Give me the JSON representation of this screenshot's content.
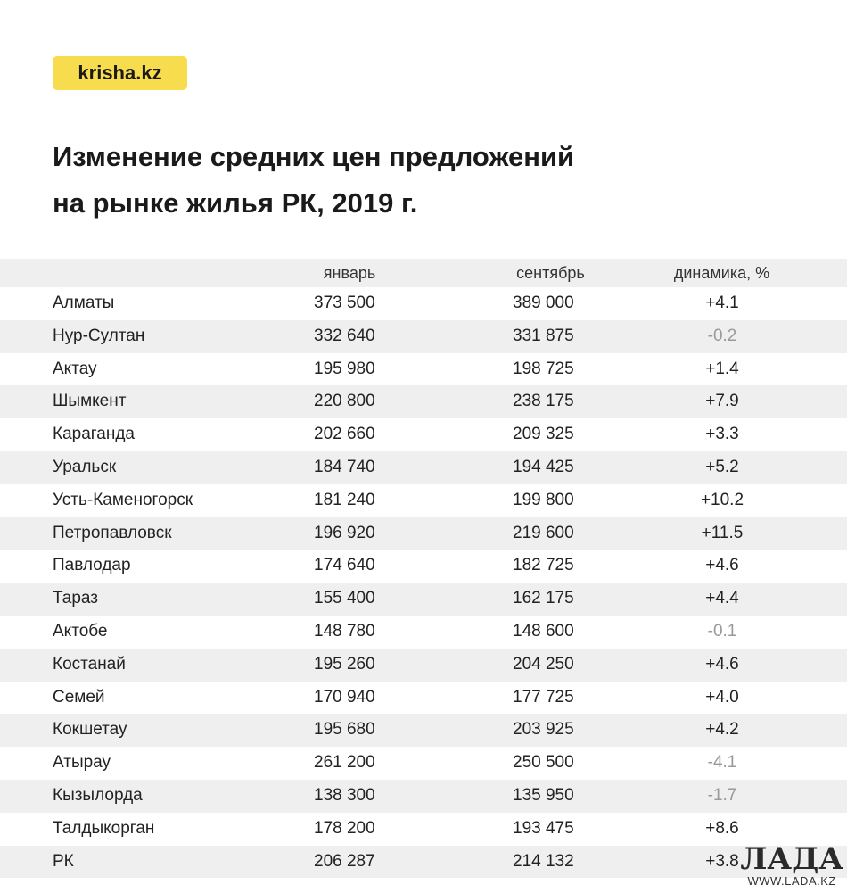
{
  "logo": "krisha.kz",
  "title_line1": "Изменение средних цен предложений",
  "title_line2": "на рынке жилья РК, 2019 г.",
  "columns": {
    "january": "январь",
    "september": "сентябрь",
    "change": "динамика, %"
  },
  "rows": [
    {
      "city": "Алматы",
      "january": "373 500",
      "september": "389 000",
      "change": "+4.1"
    },
    {
      "city": "Нур-Султан",
      "january": "332 640",
      "september": "331 875",
      "change": "-0.2"
    },
    {
      "city": "Актау",
      "january": "195 980",
      "september": "198 725",
      "change": "+1.4"
    },
    {
      "city": "Шымкент",
      "january": "220 800",
      "september": "238 175",
      "change": "+7.9"
    },
    {
      "city": "Караганда",
      "january": "202 660",
      "september": "209 325",
      "change": "+3.3"
    },
    {
      "city": "Уральск",
      "january": "184 740",
      "september": "194 425",
      "change": "+5.2"
    },
    {
      "city": "Усть-Каменогорск",
      "january": "181 240",
      "september": "199 800",
      "change": "+10.2"
    },
    {
      "city": "Петропавловск",
      "january": "196 920",
      "september": "219 600",
      "change": "+11.5"
    },
    {
      "city": "Павлодар",
      "january": "174 640",
      "september": "182 725",
      "change": "+4.6"
    },
    {
      "city": "Тараз",
      "january": "155 400",
      "september": "162 175",
      "change": "+4.4"
    },
    {
      "city": "Актобе",
      "january": "148 780",
      "september": "148 600",
      "change": "-0.1"
    },
    {
      "city": "Костанай",
      "january": "195 260",
      "september": "204 250",
      "change": "+4.6"
    },
    {
      "city": "Семей",
      "january": "170 940",
      "september": "177 725",
      "change": "+4.0"
    },
    {
      "city": "Кокшетау",
      "january": "195 680",
      "september": "203 925",
      "change": "+4.2"
    },
    {
      "city": "Атырау",
      "january": "261 200",
      "september": "250 500",
      "change": "-4.1"
    },
    {
      "city": "Кызылорда",
      "january": "138 300",
      "september": "135 950",
      "change": "-1.7"
    },
    {
      "city": "Талдыкорган",
      "january": "178 200",
      "september": "193 475",
      "change": "+8.6"
    },
    {
      "city": "РК",
      "january": "206 287",
      "september": "214 132",
      "change": "+3.8"
    }
  ],
  "watermark": {
    "name": "ЛАДА",
    "url": "WWW.LADA.KZ"
  },
  "colors": {
    "logo_bg": "#f7dd4d",
    "stripe": "#efefef",
    "negative": "#999999"
  }
}
